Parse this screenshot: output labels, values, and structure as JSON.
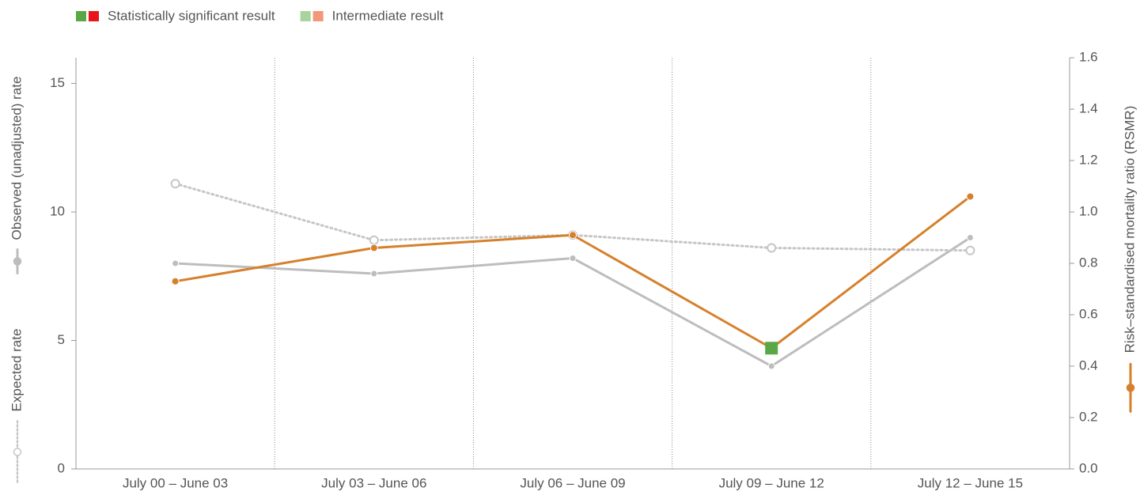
{
  "chart_data": {
    "type": "line",
    "categories": [
      "July 00 – June 03",
      "July 03 – June 06",
      "July 06 – June 09",
      "July 09 – June 12",
      "July 12 – June 15"
    ],
    "legend": [
      {
        "label": "Statistically significant result",
        "colors": [
          "#5aa845",
          "#e8141b"
        ]
      },
      {
        "label": "Intermediate result",
        "colors": [
          "#a8d39b",
          "#f2977a"
        ]
      }
    ],
    "series": [
      {
        "name": "Observed (unadjusted) rate",
        "color": "#bdbdbd",
        "style": "solid",
        "marker": "dot",
        "axis": "y",
        "values": [
          8.0,
          7.6,
          8.2,
          4.0,
          9.0
        ]
      },
      {
        "name": "Expected rate",
        "color": "#c6c6c6",
        "style": "dotted",
        "marker": "open",
        "axis": "y",
        "values": [
          11.1,
          8.9,
          9.1,
          8.6,
          8.5
        ]
      },
      {
        "name": "Risk–standardised mortality ratio (RSMR)",
        "color": "#d6802b",
        "style": "solid",
        "marker": "dot",
        "axis": "y2",
        "values": [
          0.73,
          0.86,
          0.91,
          0.47,
          1.06
        ],
        "point_colors": [
          "#d6802b",
          "#d6802b",
          "#d6802b",
          "#5aa845",
          "#d6802b"
        ]
      }
    ],
    "ylim": [
      0,
      16
    ],
    "yticks": [
      0,
      5,
      10,
      15
    ],
    "y2lim": [
      0,
      1.6
    ],
    "y2ticks": [
      {
        "value": 0,
        "label": "0.0"
      },
      0.2,
      0.4,
      0.6,
      0.8,
      {
        "value": 1,
        "label": "1.0"
      },
      1.2,
      1.4,
      1.6
    ]
  }
}
